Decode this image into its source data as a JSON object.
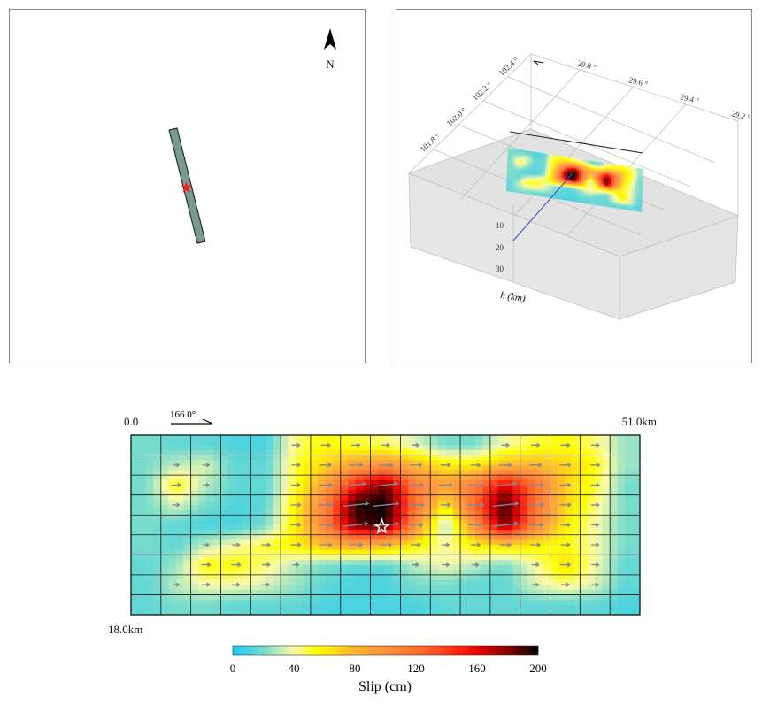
{
  "map_panel": {
    "north_label": "N"
  },
  "view3d": {
    "lon_ticks": [
      "101.8 °",
      "102.0 °",
      "102.2 °",
      "102.4 °"
    ],
    "lat_ticks": [
      "29.8 °",
      "29.6 °",
      "29.4 °",
      "29.2 °"
    ],
    "depth_ticks": [
      "10",
      "20",
      "30"
    ],
    "depth_label": "h (km)"
  },
  "chart_data": {
    "type": "heatmap",
    "title": "",
    "strike_label": "166.0°",
    "x_start_label": "0.0",
    "x_end_label": "51.0km",
    "y_end_label": "18.0km",
    "along_strike_km": [
      0,
      51
    ],
    "down_dip_km": [
      0,
      18
    ],
    "columns": 17,
    "rows": 9,
    "slip_cm": [
      [
        20,
        15,
        15,
        10,
        10,
        45,
        55,
        50,
        45,
        35,
        20,
        20,
        40,
        50,
        55,
        45,
        25
      ],
      [
        20,
        30,
        35,
        15,
        15,
        50,
        70,
        90,
        100,
        80,
        60,
        60,
        80,
        80,
        70,
        55,
        25
      ],
      [
        20,
        55,
        30,
        15,
        15,
        50,
        90,
        150,
        185,
        110,
        90,
        110,
        165,
        120,
        70,
        50,
        20
      ],
      [
        20,
        35,
        20,
        10,
        15,
        60,
        110,
        195,
        200,
        120,
        60,
        125,
        195,
        120,
        70,
        45,
        20
      ],
      [
        20,
        15,
        10,
        10,
        20,
        60,
        110,
        185,
        195,
        100,
        25,
        100,
        185,
        110,
        60,
        40,
        20
      ],
      [
        20,
        15,
        30,
        40,
        50,
        60,
        80,
        90,
        80,
        60,
        40,
        60,
        70,
        60,
        55,
        40,
        20
      ],
      [
        15,
        25,
        55,
        55,
        45,
        30,
        20,
        15,
        15,
        30,
        40,
        30,
        20,
        40,
        65,
        40,
        15
      ],
      [
        15,
        30,
        40,
        40,
        35,
        25,
        15,
        10,
        10,
        20,
        20,
        15,
        15,
        35,
        45,
        35,
        15
      ],
      [
        15,
        20,
        20,
        15,
        15,
        15,
        10,
        10,
        10,
        10,
        15,
        15,
        15,
        15,
        15,
        15,
        10
      ]
    ],
    "hypocenter_cell": [
      8,
      4
    ],
    "colorbar": {
      "label": "Slip (cm)",
      "range": [
        0,
        200
      ],
      "ticks": [
        "0",
        "40",
        "80",
        "120",
        "160",
        "200"
      ]
    }
  },
  "colors": {
    "low": "#1ec8f0",
    "mid": "#ffff00",
    "high": "#000000",
    "arrow": "#7f8a99"
  }
}
